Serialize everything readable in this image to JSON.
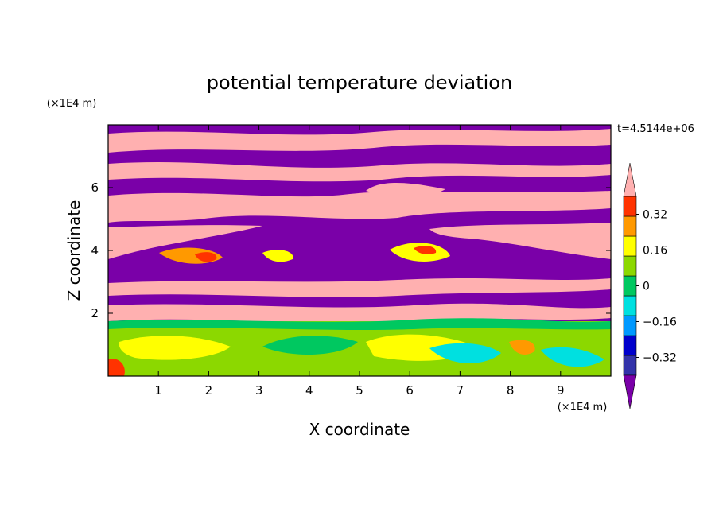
{
  "chart_data": {
    "type": "heatmap",
    "title": "potential temperature deviation",
    "xlabel": "X coordinate",
    "ylabel": "Z coordinate",
    "x_unit": "(×1E4 m)",
    "y_unit": "(×1E4 m)",
    "time_label": "t=4.5144e+06",
    "xlim": [
      0,
      10
    ],
    "ylim": [
      0,
      8
    ],
    "x_ticks": [
      1,
      2,
      3,
      4,
      5,
      6,
      7,
      8,
      9
    ],
    "y_ticks": [
      2,
      4,
      6
    ],
    "colorbar": {
      "colors": [
        "#7a00a8",
        "#3333aa",
        "#0000cc",
        "#0099ff",
        "#00e0e0",
        "#00c860",
        "#8cd800",
        "#ffff00",
        "#ff9900",
        "#ff3300",
        "#ffb0b0"
      ],
      "labels": [
        "0.32",
        "0.16",
        "0",
        "-0.16",
        "-0.32"
      ],
      "label_values": [
        0.32,
        0.16,
        0,
        -0.16,
        -0.32
      ],
      "extend": "both"
    }
  }
}
